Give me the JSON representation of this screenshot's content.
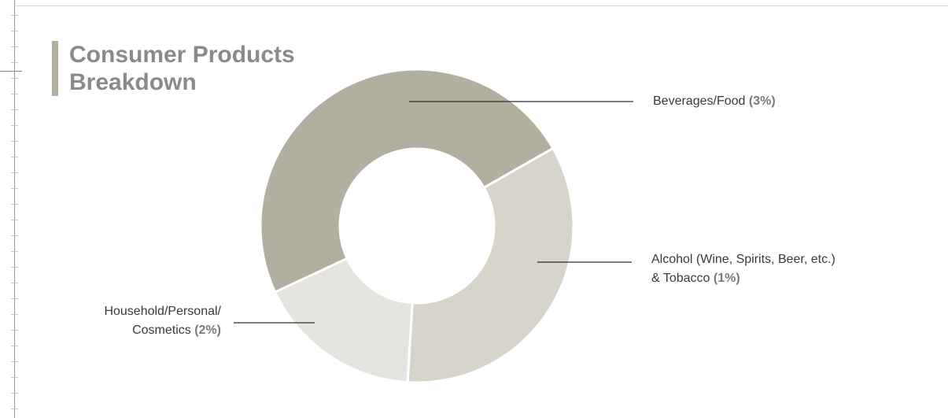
{
  "title": {
    "line1": "Consumer Products",
    "line2": "Breakdown"
  },
  "chart_data": {
    "type": "pie",
    "title": "Consumer Products Breakdown",
    "hole": true,
    "slices": [
      {
        "name": "Beverages/Food",
        "label_lines": [
          "Beverages/Food"
        ],
        "pct_label": "(3%)",
        "value": 3,
        "visual_share": 48.7,
        "color": "#b3afa0"
      },
      {
        "name": "Alcohol (Wine, Spirits, Beer, etc.) & Tobacco",
        "label_lines": [
          "Alcohol (Wine, Spirits, Beer, etc.)",
          "& Tobacco"
        ],
        "pct_label": "(1%)",
        "value": 1,
        "visual_share": 34.2,
        "color": "#d7d5ca"
      },
      {
        "name": "Household/Personal/Cosmetics",
        "label_lines": [
          "Household/Personal/",
          "Cosmetics"
        ],
        "pct_label": "(2%)",
        "value": 2,
        "visual_share": 17.1,
        "color": "#e5e4de"
      }
    ]
  }
}
